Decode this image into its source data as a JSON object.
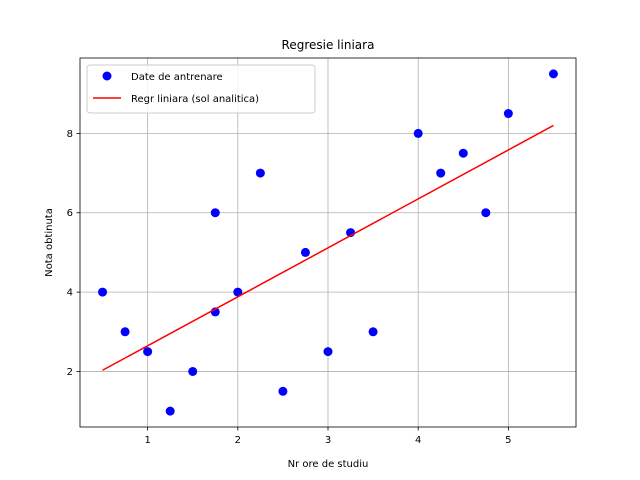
{
  "chart_data": {
    "type": "scatter",
    "title": "Regresie liniara",
    "xlabel": "Nr ore de studiu",
    "ylabel": "Nota obtinuta",
    "xlim": [
      0.25,
      5.75
    ],
    "ylim": [
      0.6,
      9.9
    ],
    "xticks": [
      1,
      2,
      3,
      4,
      5
    ],
    "yticks": [
      2,
      4,
      6,
      8
    ],
    "grid": true,
    "legend_position": "top-left",
    "series": [
      {
        "name": "Date de antrenare",
        "kind": "scatter",
        "color": "#0000ff",
        "points": [
          [
            0.5,
            4
          ],
          [
            0.75,
            3
          ],
          [
            1.0,
            2.5
          ],
          [
            1.25,
            1
          ],
          [
            1.5,
            2
          ],
          [
            1.75,
            6
          ],
          [
            1.75,
            3.5
          ],
          [
            2.0,
            4
          ],
          [
            2.25,
            7
          ],
          [
            2.5,
            1.5
          ],
          [
            2.75,
            5
          ],
          [
            3.0,
            2.5
          ],
          [
            3.25,
            5.5
          ],
          [
            3.5,
            3
          ],
          [
            4.0,
            8
          ],
          [
            4.25,
            7
          ],
          [
            4.5,
            7.5
          ],
          [
            4.75,
            6
          ],
          [
            5.0,
            8.5
          ],
          [
            5.5,
            9.5
          ]
        ]
      },
      {
        "name": "Regr liniara (sol analitica)",
        "kind": "line",
        "color": "#ff0000",
        "points": [
          [
            0.5,
            2.03
          ],
          [
            5.5,
            8.2
          ]
        ]
      }
    ]
  }
}
